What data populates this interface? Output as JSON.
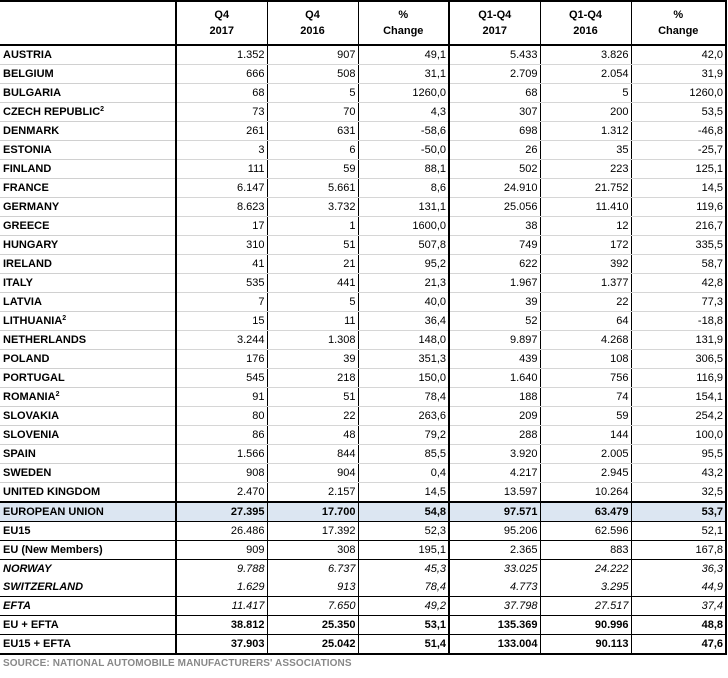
{
  "headers": [
    {
      "l1": "",
      "l2": ""
    },
    {
      "l1": "Q4",
      "l2": "2017"
    },
    {
      "l1": "Q4",
      "l2": "2016"
    },
    {
      "l1": "%",
      "l2": "Change"
    },
    {
      "l1": "Q1-Q4",
      "l2": "2017"
    },
    {
      "l1": "Q1-Q4",
      "l2": "2016"
    },
    {
      "l1": "%",
      "l2": "Change"
    }
  ],
  "rows": [
    {
      "name": "AUSTRIA",
      "sup": "",
      "v": [
        "1.352",
        "907",
        "49,1",
        "5.433",
        "3.826",
        "42,0"
      ]
    },
    {
      "name": "BELGIUM",
      "sup": "",
      "v": [
        "666",
        "508",
        "31,1",
        "2.709",
        "2.054",
        "31,9"
      ]
    },
    {
      "name": "BULGARIA",
      "sup": "",
      "v": [
        "68",
        "5",
        "1260,0",
        "68",
        "5",
        "1260,0"
      ]
    },
    {
      "name": "CZECH REPUBLIC",
      "sup": "2",
      "v": [
        "73",
        "70",
        "4,3",
        "307",
        "200",
        "53,5"
      ]
    },
    {
      "name": "DENMARK",
      "sup": "",
      "v": [
        "261",
        "631",
        "-58,6",
        "698",
        "1.312",
        "-46,8"
      ]
    },
    {
      "name": "ESTONIA",
      "sup": "",
      "v": [
        "3",
        "6",
        "-50,0",
        "26",
        "35",
        "-25,7"
      ]
    },
    {
      "name": "FINLAND",
      "sup": "",
      "v": [
        "111",
        "59",
        "88,1",
        "502",
        "223",
        "125,1"
      ]
    },
    {
      "name": "FRANCE",
      "sup": "",
      "v": [
        "6.147",
        "5.661",
        "8,6",
        "24.910",
        "21.752",
        "14,5"
      ]
    },
    {
      "name": "GERMANY",
      "sup": "",
      "v": [
        "8.623",
        "3.732",
        "131,1",
        "25.056",
        "11.410",
        "119,6"
      ]
    },
    {
      "name": "GREECE",
      "sup": "",
      "v": [
        "17",
        "1",
        "1600,0",
        "38",
        "12",
        "216,7"
      ]
    },
    {
      "name": "HUNGARY",
      "sup": "",
      "v": [
        "310",
        "51",
        "507,8",
        "749",
        "172",
        "335,5"
      ]
    },
    {
      "name": "IRELAND",
      "sup": "",
      "v": [
        "41",
        "21",
        "95,2",
        "622",
        "392",
        "58,7"
      ]
    },
    {
      "name": "ITALY",
      "sup": "",
      "v": [
        "535",
        "441",
        "21,3",
        "1.967",
        "1.377",
        "42,8"
      ]
    },
    {
      "name": "LATVIA",
      "sup": "",
      "v": [
        "7",
        "5",
        "40,0",
        "39",
        "22",
        "77,3"
      ]
    },
    {
      "name": "LITHUANIA",
      "sup": "2",
      "v": [
        "15",
        "11",
        "36,4",
        "52",
        "64",
        "-18,8"
      ]
    },
    {
      "name": "NETHERLANDS",
      "sup": "",
      "v": [
        "3.244",
        "1.308",
        "148,0",
        "9.897",
        "4.268",
        "131,9"
      ]
    },
    {
      "name": "POLAND",
      "sup": "",
      "v": [
        "176",
        "39",
        "351,3",
        "439",
        "108",
        "306,5"
      ]
    },
    {
      "name": "PORTUGAL",
      "sup": "",
      "v": [
        "545",
        "218",
        "150,0",
        "1.640",
        "756",
        "116,9"
      ]
    },
    {
      "name": "ROMANIA",
      "sup": "2",
      "v": [
        "91",
        "51",
        "78,4",
        "188",
        "74",
        "154,1"
      ]
    },
    {
      "name": "SLOVAKIA",
      "sup": "",
      "v": [
        "80",
        "22",
        "263,6",
        "209",
        "59",
        "254,2"
      ]
    },
    {
      "name": "SLOVENIA",
      "sup": "",
      "v": [
        "86",
        "48",
        "79,2",
        "288",
        "144",
        "100,0"
      ]
    },
    {
      "name": "SPAIN",
      "sup": "",
      "v": [
        "1.566",
        "844",
        "85,5",
        "3.920",
        "2.005",
        "95,5"
      ]
    },
    {
      "name": "SWEDEN",
      "sup": "",
      "v": [
        "908",
        "904",
        "0,4",
        "4.217",
        "2.945",
        "43,2"
      ]
    },
    {
      "name": "UNITED KINGDOM",
      "sup": "",
      "v": [
        "2.470",
        "2.157",
        "14,5",
        "13.597",
        "10.264",
        "32,5"
      ]
    }
  ],
  "summary": [
    {
      "name": "EUROPEAN UNION",
      "style": "eu",
      "v": [
        "27.395",
        "17.700",
        "54,8",
        "97.571",
        "63.479",
        "53,7"
      ]
    },
    {
      "name": "EU15",
      "style": "sum",
      "v": [
        "26.486",
        "17.392",
        "52,3",
        "95.206",
        "62.596",
        "52,1"
      ]
    },
    {
      "name": "EU (New Members)",
      "style": "sum",
      "v": [
        "909",
        "308",
        "195,1",
        "2.365",
        "883",
        "167,8"
      ]
    },
    {
      "name": "NORWAY",
      "style": "ital",
      "v": [
        "9.788",
        "6.737",
        "45,3",
        "33.025",
        "24.222",
        "36,3"
      ]
    },
    {
      "name": "SWITZERLAND",
      "style": "ital sum",
      "v": [
        "1.629",
        "913",
        "78,4",
        "4.773",
        "3.295",
        "44,9"
      ]
    },
    {
      "name": "EFTA",
      "style": "efta sum",
      "v": [
        "11.417",
        "7.650",
        "49,2",
        "37.798",
        "27.517",
        "37,4"
      ]
    },
    {
      "name": "EU + EFTA",
      "style": "bold sum",
      "v": [
        "38.812",
        "25.350",
        "53,1",
        "135.369",
        "90.996",
        "48,8"
      ]
    },
    {
      "name": "EU15 + EFTA",
      "style": "bold last",
      "v": [
        "37.903",
        "25.042",
        "51,4",
        "133.004",
        "90.113",
        "47,6"
      ]
    }
  ],
  "source": "SOURCE: NATIONAL AUTOMOBILE MANUFACTURERS' ASSOCIATIONS"
}
